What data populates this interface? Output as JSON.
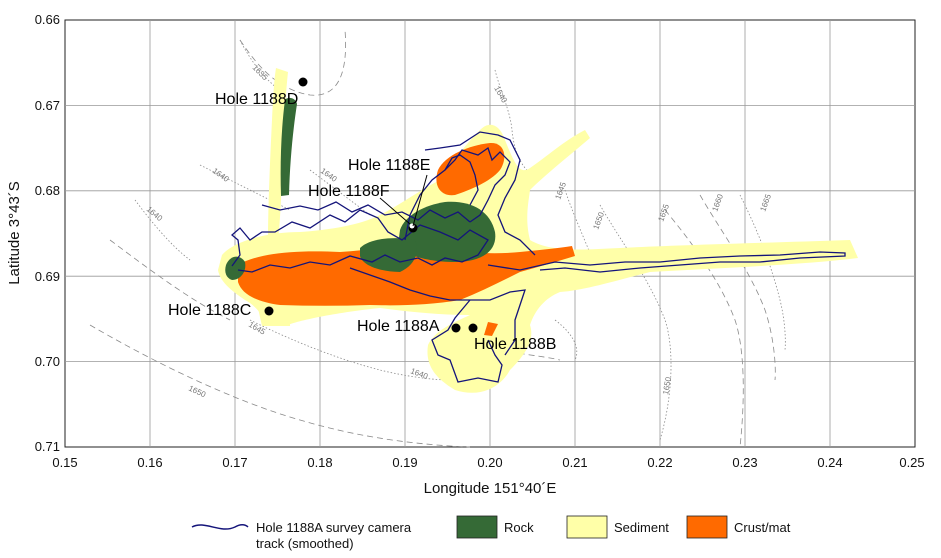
{
  "axes": {
    "x_title": "Longitude 151°40´E",
    "y_title": "Latitude 3°43´S",
    "x_ticks": [
      "0.15",
      "0.16",
      "0.17",
      "0.18",
      "0.19",
      "0.20",
      "0.21",
      "0.22",
      "0.23",
      "0.24",
      "0.25"
    ],
    "y_ticks": [
      "0.66",
      "0.67",
      "0.68",
      "0.69",
      "0.70",
      "0.71"
    ],
    "x_range": [
      0.15,
      0.25
    ],
    "y_range": [
      0.66,
      0.71
    ],
    "grid": true
  },
  "holes": [
    {
      "name": "Hole 1188A",
      "lon": 0.196,
      "lat": 0.696
    },
    {
      "name": "Hole 1188B",
      "lon": 0.1975,
      "lat": 0.696
    },
    {
      "name": "Hole 1188C",
      "lon": 0.174,
      "lat": 0.694
    },
    {
      "name": "Hole 1188D",
      "lon": 0.178,
      "lat": 0.6672
    },
    {
      "name": "Hole 1188E",
      "lon": 0.191,
      "lat": 0.6843
    },
    {
      "name": "Hole 1188F",
      "lon": 0.191,
      "lat": 0.6848
    }
  ],
  "contours": [
    {
      "label": "1635"
    },
    {
      "label": "1640"
    },
    {
      "label": "1645"
    },
    {
      "label": "1650"
    },
    {
      "label": "1655"
    },
    {
      "label": "1660"
    },
    {
      "label": "1665"
    }
  ],
  "legend": {
    "track_label_line1": "Hole 1188A survey camera",
    "track_label_line2": "track (smoothed)",
    "rock_label": "Rock",
    "sediment_label": "Sediment",
    "crust_label": "Crust/mat"
  },
  "colors": {
    "track": "#14147a",
    "rock": "#356a36",
    "sediment": "#ffffa8",
    "crust": "#ff6a00",
    "grid": "#999999",
    "contour": "#8a8a8a"
  }
}
